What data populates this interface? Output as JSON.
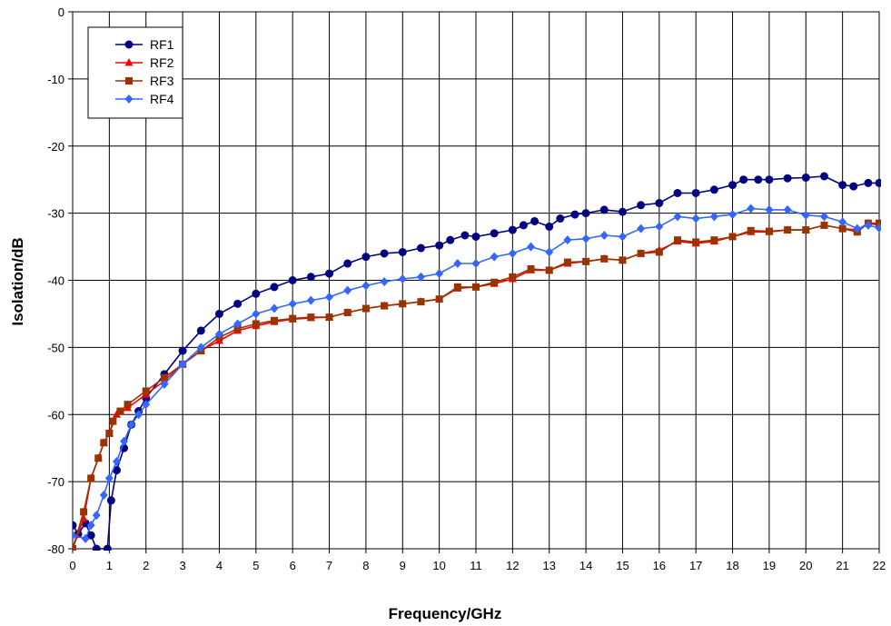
{
  "chart_data": {
    "type": "line",
    "title": "",
    "xlabel": "Frequency/GHz",
    "ylabel": "Isolation/dB",
    "xlim": [
      0,
      22
    ],
    "ylim": [
      -80,
      0
    ],
    "x_ticks": [
      "0",
      "1",
      "2",
      "3",
      "4",
      "5",
      "6",
      "7",
      "8",
      "9",
      "10",
      "11",
      "12",
      "13",
      "14",
      "15",
      "16",
      "17",
      "18",
      "19",
      "20",
      "21",
      "22"
    ],
    "y_ticks": [
      "0",
      "-10",
      "-20",
      "-30",
      "-40",
      "-50",
      "-60",
      "-70",
      "-80"
    ],
    "grid": true,
    "legend_position": "top-left",
    "series": [
      {
        "name": "RF1",
        "color": "#000080",
        "marker": "circle",
        "points": [
          [
            0,
            -76.5
          ],
          [
            0.15,
            -77.8
          ],
          [
            0.35,
            -76.2
          ],
          [
            0.5,
            -78
          ],
          [
            0.65,
            -80
          ],
          [
            0.95,
            -80
          ],
          [
            1.05,
            -72.8
          ],
          [
            1.2,
            -68.3
          ],
          [
            1.4,
            -65
          ],
          [
            1.6,
            -61.5
          ],
          [
            1.8,
            -59.5
          ],
          [
            2.0,
            -57.5
          ],
          [
            2.5,
            -54
          ],
          [
            3.0,
            -50.5
          ],
          [
            3.5,
            -47.5
          ],
          [
            4.0,
            -45
          ],
          [
            4.5,
            -43.5
          ],
          [
            5.0,
            -42
          ],
          [
            5.5,
            -41
          ],
          [
            6.0,
            -40
          ],
          [
            6.5,
            -39.5
          ],
          [
            7.0,
            -39
          ],
          [
            7.5,
            -37.5
          ],
          [
            8.0,
            -36.5
          ],
          [
            8.5,
            -36
          ],
          [
            9.0,
            -35.8
          ],
          [
            9.5,
            -35.2
          ],
          [
            10.0,
            -34.8
          ],
          [
            10.3,
            -34
          ],
          [
            10.7,
            -33.3
          ],
          [
            11.0,
            -33.5
          ],
          [
            11.5,
            -33
          ],
          [
            12.0,
            -32.5
          ],
          [
            12.3,
            -31.8
          ],
          [
            12.6,
            -31.2
          ],
          [
            13.0,
            -32
          ],
          [
            13.3,
            -30.8
          ],
          [
            13.7,
            -30.2
          ],
          [
            14.0,
            -30
          ],
          [
            14.5,
            -29.5
          ],
          [
            15.0,
            -29.8
          ],
          [
            15.5,
            -28.8
          ],
          [
            16.0,
            -28.5
          ],
          [
            16.5,
            -27
          ],
          [
            17.0,
            -27
          ],
          [
            17.5,
            -26.5
          ],
          [
            18.0,
            -25.8
          ],
          [
            18.3,
            -25
          ],
          [
            18.7,
            -25
          ],
          [
            19.0,
            -25
          ],
          [
            19.5,
            -24.8
          ],
          [
            20.0,
            -24.7
          ],
          [
            20.5,
            -24.5
          ],
          [
            21.0,
            -25.8
          ],
          [
            21.3,
            -26
          ],
          [
            21.7,
            -25.5
          ],
          [
            22.0,
            -25.5
          ]
        ]
      },
      {
        "name": "RF2",
        "color": "#ff0000",
        "marker": "triangle",
        "points": [
          [
            0,
            -80
          ],
          [
            0.3,
            -75.5
          ],
          [
            0.5,
            -69.5
          ],
          [
            0.7,
            -66.5
          ],
          [
            0.85,
            -64.2
          ],
          [
            1.0,
            -62.8
          ],
          [
            1.2,
            -60
          ],
          [
            1.5,
            -59
          ],
          [
            2.0,
            -57
          ],
          [
            2.5,
            -55
          ],
          [
            3.0,
            -52.5
          ],
          [
            3.5,
            -50.5
          ],
          [
            4.0,
            -49
          ],
          [
            4.5,
            -47.5
          ],
          [
            5.0,
            -46.8
          ],
          [
            5.5,
            -46.2
          ],
          [
            6.0,
            -45.8
          ],
          [
            6.5,
            -45.6
          ],
          [
            7.0,
            -45.5
          ],
          [
            7.5,
            -44.8
          ],
          [
            8.0,
            -44.2
          ],
          [
            8.5,
            -43.8
          ],
          [
            9.0,
            -43.5
          ],
          [
            9.5,
            -43.2
          ],
          [
            10.0,
            -42.8
          ],
          [
            10.5,
            -41.2
          ],
          [
            11.0,
            -41
          ],
          [
            11.5,
            -40.5
          ],
          [
            12.0,
            -39.8
          ],
          [
            12.5,
            -38.5
          ],
          [
            13.0,
            -38.5
          ],
          [
            13.5,
            -37.5
          ],
          [
            14.0,
            -37.2
          ],
          [
            14.5,
            -36.8
          ],
          [
            15.0,
            -37
          ],
          [
            15.5,
            -36
          ],
          [
            16.0,
            -35.5
          ],
          [
            16.5,
            -34.2
          ],
          [
            17.0,
            -34.5
          ],
          [
            17.5,
            -34.2
          ],
          [
            18.0,
            -33.5
          ],
          [
            18.5,
            -32.8
          ],
          [
            19.0,
            -32.8
          ],
          [
            19.5,
            -32.5
          ],
          [
            20.0,
            -32.5
          ],
          [
            20.5,
            -31.8
          ],
          [
            21.0,
            -32.3
          ],
          [
            21.4,
            -32.5
          ],
          [
            21.7,
            -31.5
          ],
          [
            22.0,
            -31.8
          ]
        ]
      },
      {
        "name": "RF3",
        "color": "#993300",
        "marker": "square",
        "points": [
          [
            0,
            -80
          ],
          [
            0.3,
            -74.5
          ],
          [
            0.5,
            -69.5
          ],
          [
            0.7,
            -66.5
          ],
          [
            0.85,
            -64.2
          ],
          [
            1.0,
            -62.8
          ],
          [
            1.1,
            -61
          ],
          [
            1.3,
            -59.5
          ],
          [
            1.5,
            -58.5
          ],
          [
            2.0,
            -56.5
          ],
          [
            2.5,
            -54.5
          ],
          [
            3.0,
            -52.5
          ],
          [
            3.5,
            -50.5
          ],
          [
            4.0,
            -48.5
          ],
          [
            4.5,
            -47.2
          ],
          [
            5.0,
            -46.5
          ],
          [
            5.5,
            -46
          ],
          [
            6.0,
            -45.7
          ],
          [
            6.5,
            -45.5
          ],
          [
            7.0,
            -45.5
          ],
          [
            7.5,
            -44.8
          ],
          [
            8.0,
            -44.2
          ],
          [
            8.5,
            -43.8
          ],
          [
            9.0,
            -43.5
          ],
          [
            9.5,
            -43.2
          ],
          [
            10.0,
            -42.8
          ],
          [
            10.5,
            -41
          ],
          [
            11.0,
            -41
          ],
          [
            11.5,
            -40.3
          ],
          [
            12.0,
            -39.5
          ],
          [
            12.5,
            -38.3
          ],
          [
            13.0,
            -38.5
          ],
          [
            13.5,
            -37.3
          ],
          [
            14.0,
            -37.2
          ],
          [
            14.5,
            -36.8
          ],
          [
            15.0,
            -37
          ],
          [
            15.5,
            -36
          ],
          [
            16.0,
            -35.8
          ],
          [
            16.5,
            -34
          ],
          [
            17.0,
            -34.3
          ],
          [
            17.5,
            -34
          ],
          [
            18.0,
            -33.5
          ],
          [
            18.5,
            -32.6
          ],
          [
            19.0,
            -32.7
          ],
          [
            19.5,
            -32.5
          ],
          [
            20.0,
            -32.5
          ],
          [
            20.5,
            -31.8
          ],
          [
            21.0,
            -32.3
          ],
          [
            21.4,
            -32.8
          ],
          [
            21.7,
            -31.5
          ],
          [
            22.0,
            -31.5
          ]
        ]
      },
      {
        "name": "RF4",
        "color": "#3366ff",
        "marker": "diamond",
        "points": [
          [
            0,
            -78
          ],
          [
            0.35,
            -78.5
          ],
          [
            0.5,
            -76.5
          ],
          [
            0.65,
            -75
          ],
          [
            0.85,
            -72
          ],
          [
            1.0,
            -69.5
          ],
          [
            1.2,
            -67
          ],
          [
            1.4,
            -64
          ],
          [
            1.6,
            -61.5
          ],
          [
            1.8,
            -60
          ],
          [
            2.0,
            -58.5
          ],
          [
            2.5,
            -55.5
          ],
          [
            3.0,
            -52.5
          ],
          [
            3.5,
            -50
          ],
          [
            4.0,
            -48
          ],
          [
            4.5,
            -46.5
          ],
          [
            5.0,
            -45
          ],
          [
            5.5,
            -44.2
          ],
          [
            6.0,
            -43.5
          ],
          [
            6.5,
            -43
          ],
          [
            7.0,
            -42.5
          ],
          [
            7.5,
            -41.5
          ],
          [
            8.0,
            -40.8
          ],
          [
            8.5,
            -40.2
          ],
          [
            9.0,
            -39.8
          ],
          [
            9.5,
            -39.5
          ],
          [
            10.0,
            -39
          ],
          [
            10.5,
            -37.5
          ],
          [
            11.0,
            -37.5
          ],
          [
            11.5,
            -36.5
          ],
          [
            12.0,
            -36
          ],
          [
            12.5,
            -35
          ],
          [
            13.0,
            -35.8
          ],
          [
            13.5,
            -34
          ],
          [
            14.0,
            -33.8
          ],
          [
            14.5,
            -33.3
          ],
          [
            15.0,
            -33.5
          ],
          [
            15.5,
            -32.3
          ],
          [
            16.0,
            -32
          ],
          [
            16.5,
            -30.5
          ],
          [
            17.0,
            -30.8
          ],
          [
            17.5,
            -30.5
          ],
          [
            18.0,
            -30.2
          ],
          [
            18.5,
            -29.3
          ],
          [
            19.0,
            -29.5
          ],
          [
            19.5,
            -29.5
          ],
          [
            20.0,
            -30.3
          ],
          [
            20.5,
            -30.5
          ],
          [
            21.0,
            -31.3
          ],
          [
            21.4,
            -32.3
          ],
          [
            21.7,
            -31.8
          ],
          [
            22.0,
            -32.2
          ]
        ]
      }
    ]
  }
}
